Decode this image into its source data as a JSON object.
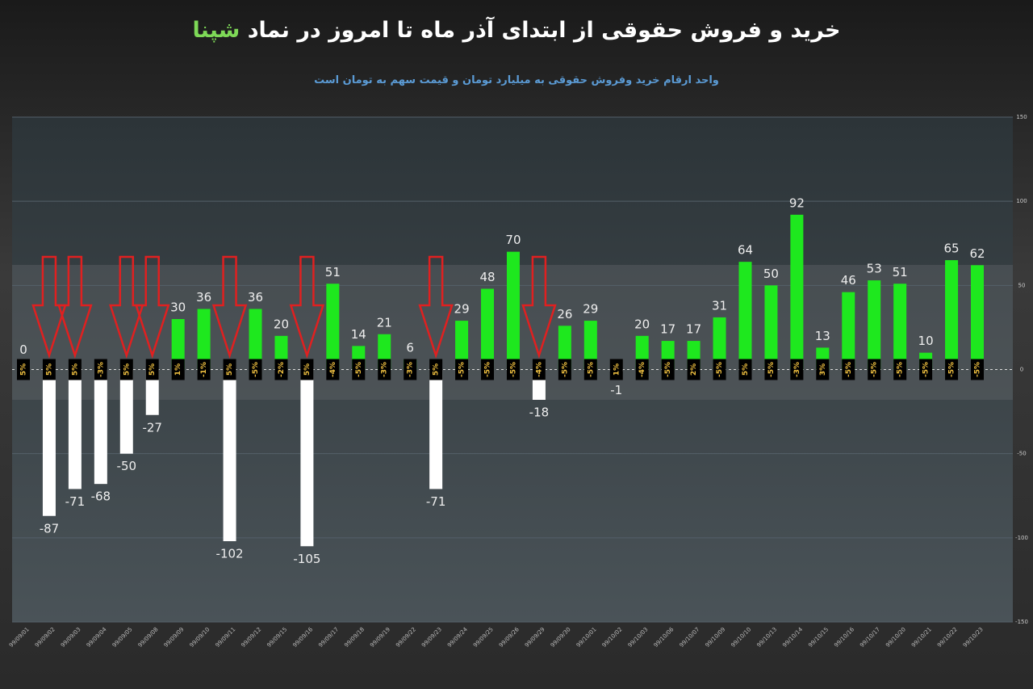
{
  "chart_data": {
    "type": "bar",
    "title": "خرید و فروش حقوقی از ابتدای آذر ماه تا امروز در نماد",
    "symbol": "شپنا",
    "subtitle": "واحد ارقام خرید وفروش حقوقی به میلیارد  تومان  و قیمت سهم به تومان  است",
    "categories": [
      "99/09/01",
      "99/09/02",
      "99/09/03",
      "99/09/04",
      "99/09/05",
      "99/09/08",
      "99/09/09",
      "99/09/10",
      "99/09/11",
      "99/09/12",
      "99/09/15",
      "99/09/16",
      "99/09/17",
      "99/09/18",
      "99/09/19",
      "99/09/22",
      "99/09/23",
      "99/09/24",
      "99/09/25",
      "99/09/26",
      "99/09/29",
      "99/09/30",
      "99/10/01",
      "99/10/02",
      "99/10/03",
      "99/10/06",
      "99/10/07",
      "99/10/09",
      "99/10/10",
      "99/10/13",
      "99/10/14",
      "99/10/15",
      "99/10/16",
      "99/10/17",
      "99/10/20",
      "99/10/21",
      "99/10/22",
      "99/10/23"
    ],
    "values": [
      0,
      -87,
      -71,
      -68,
      -50,
      -27,
      30,
      36,
      -102,
      36,
      20,
      -105,
      51,
      14,
      21,
      6,
      -71,
      29,
      48,
      70,
      -18,
      26,
      29,
      -1,
      20,
      17,
      17,
      31,
      64,
      50,
      92,
      13,
      46,
      53,
      51,
      10,
      65,
      62
    ],
    "colors": {
      "positive": "#1ee81e",
      "negative": "#ffffff"
    },
    "price_change": {
      "values": [
        5,
        5,
        5,
        -3,
        5,
        5,
        1,
        -1,
        5,
        -5,
        -2,
        5,
        -4,
        -5,
        -3,
        -3,
        5,
        -5,
        -5,
        -5,
        -4,
        -5,
        -5,
        1,
        -4,
        -5,
        2,
        -5,
        5,
        -5,
        -3,
        3,
        -5,
        -5,
        -5,
        -5,
        -5,
        -5
      ],
      "value_labels": [
        "5%",
        "5%",
        "5%",
        "-3%",
        "5%",
        "5%",
        "1%",
        "-1%",
        "5%",
        "-5%",
        "-2%",
        "5%",
        "-4%",
        "-5%",
        "-3%",
        "-3%",
        "5%",
        "-5%",
        "-5%",
        "-5%",
        "-4%",
        "-5%",
        "-5%",
        "1%",
        "-4%",
        "-5%",
        "2%",
        "-5%",
        "5%",
        "-5%",
        "-3%",
        "3%",
        "-5%",
        "-5%",
        "-5%",
        "-5%",
        "-5%",
        "-5%"
      ]
    },
    "ylim": [
      -150,
      150
    ],
    "yticks": [
      -150,
      -100,
      -50,
      0,
      50,
      100,
      150
    ],
    "grid": true
  }
}
